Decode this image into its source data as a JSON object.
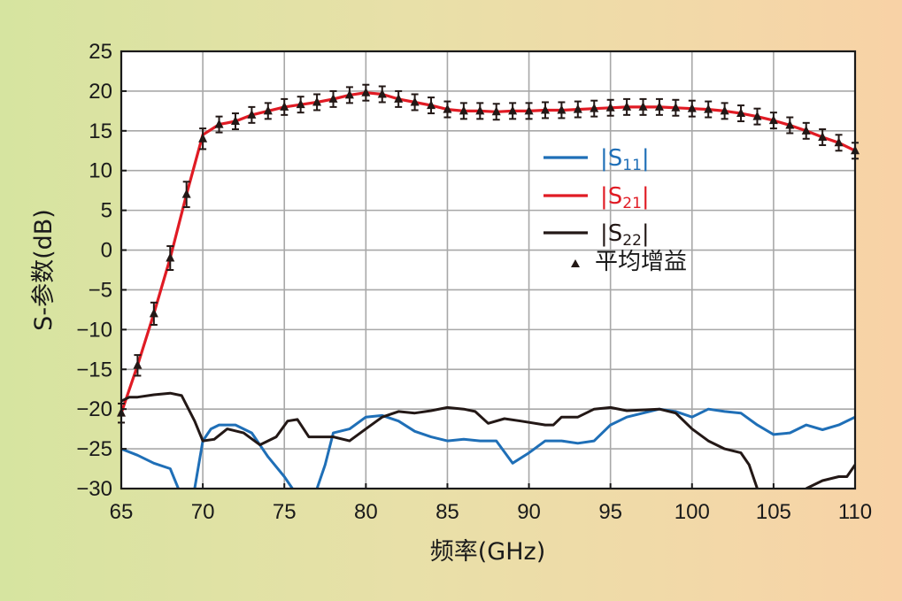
{
  "chart_data": {
    "type": "line",
    "title": "",
    "xlabel": "频率(GHz)",
    "ylabel": "S-参数(dB)",
    "xlim": [
      65,
      110
    ],
    "ylim": [
      -30,
      25
    ],
    "grid": true,
    "legend_position": "right-center",
    "x_ticks": [
      "65",
      "70",
      "75",
      "80",
      "85",
      "90",
      "95",
      "100",
      "105",
      "110"
    ],
    "y_ticks": [
      "25",
      "20",
      "15",
      "10",
      "5",
      "0",
      "−5",
      "−10",
      "−15",
      "−20",
      "−25",
      "−30"
    ],
    "series": [
      {
        "name": "|S11|",
        "label_main": "|S",
        "label_sub": "11",
        "label_end": "|",
        "color": "#1f6fb7",
        "x": [
          65,
          66,
          67,
          68,
          68.5,
          69,
          69.5,
          70,
          70.5,
          71,
          72,
          73,
          74,
          75,
          75.5,
          76.5,
          77,
          77.5,
          78,
          79,
          80,
          81,
          82,
          83,
          84,
          85,
          86,
          87,
          88,
          89,
          90,
          91,
          92,
          93,
          94,
          95,
          96,
          97,
          98,
          99,
          100,
          101,
          102,
          103,
          104,
          105,
          106,
          107,
          108,
          109,
          110
        ],
        "y": [
          -25,
          -25.8,
          -26.8,
          -27.5,
          -30,
          null,
          -30,
          -24,
          -22.5,
          -22,
          -22,
          -23,
          -26,
          -28.5,
          -30,
          null,
          -30,
          -27,
          -23,
          -22.5,
          -21,
          -20.8,
          -21.5,
          -22.8,
          -23.5,
          -24,
          -23.8,
          -24,
          -24,
          -26.8,
          -25.5,
          -24,
          -24,
          -24.3,
          -24,
          -22,
          -21,
          -20.5,
          -20,
          -20.3,
          -21,
          -20,
          -20.3,
          -20.5,
          -22,
          -23.2,
          -23,
          -22,
          -22.6,
          -22,
          -21
        ]
      },
      {
        "name": "|S21|",
        "label_main": "|S",
        "label_sub": "21",
        "label_end": "|",
        "color": "#e01b24",
        "x": [
          65,
          66,
          67,
          68,
          69,
          70,
          71,
          72,
          73,
          74,
          75,
          76,
          77,
          78,
          79,
          80,
          81,
          82,
          83,
          84,
          85,
          86,
          87,
          88,
          89,
          90,
          91,
          92,
          93,
          94,
          95,
          96,
          97,
          98,
          99,
          100,
          101,
          102,
          103,
          104,
          105,
          106,
          107,
          108,
          109,
          110
        ],
        "y": [
          -20.5,
          -14.5,
          -8,
          -1,
          7,
          14.5,
          15.8,
          16.2,
          17,
          17.5,
          18,
          18.3,
          18.6,
          19,
          19.5,
          19.8,
          19.6,
          19,
          18.6,
          18.2,
          17.7,
          17.5,
          17.5,
          17.4,
          17.5,
          17.5,
          17.6,
          17.6,
          17.7,
          17.8,
          17.9,
          18,
          18,
          18,
          17.9,
          17.8,
          17.7,
          17.5,
          17.2,
          16.8,
          16.3,
          15.7,
          15,
          14.2,
          13.5,
          12.5
        ]
      },
      {
        "name": "|S22|",
        "label_main": "|S",
        "label_sub": "22",
        "label_end": "|",
        "color": "#231816",
        "x": [
          65,
          65.5,
          66,
          67,
          68,
          68.7,
          69.5,
          70,
          70.7,
          71.5,
          72.5,
          73.5,
          74.5,
          75.2,
          75.8,
          76.5,
          78,
          79,
          80,
          81,
          82,
          83,
          84,
          85,
          86,
          86.7,
          87.5,
          88.5,
          89.5,
          91,
          91.5,
          92,
          93,
          94,
          95,
          96,
          97,
          98,
          99,
          100,
          101,
          102,
          103,
          103.5,
          104,
          104.5,
          105,
          106.5,
          107,
          108,
          109,
          109.5,
          110
        ],
        "y": [
          -19,
          -18.5,
          -18.5,
          -18.2,
          -18,
          -18.3,
          -21.5,
          -24,
          -23.8,
          -22.5,
          -23,
          -24.5,
          -23.5,
          -21.5,
          -21.3,
          -23.5,
          -23.5,
          -24,
          -22.5,
          -21,
          -20.3,
          -20.5,
          -20.2,
          -19.8,
          -20,
          -20.3,
          -21.8,
          -21.2,
          -21.5,
          -22,
          -22,
          -21,
          -21,
          -20,
          -19.8,
          -20.2,
          -20.1,
          -20,
          -20.5,
          -22.5,
          -24,
          -25,
          -25.5,
          -27,
          -30,
          null,
          null,
          null,
          -30,
          -29,
          -28.5,
          -28.5,
          -27
        ]
      },
      {
        "name": "平均增益",
        "label_main": "平均增益",
        "label_sub": "",
        "label_end": "",
        "type": "scatter",
        "marker": "triangle",
        "error_bars": true,
        "color": "#231816",
        "x": [
          65,
          66,
          67,
          68,
          69,
          70,
          71,
          72,
          73,
          74,
          75,
          76,
          77,
          78,
          79,
          80,
          81,
          82,
          83,
          84,
          85,
          86,
          87,
          88,
          89,
          90,
          91,
          92,
          93,
          94,
          95,
          96,
          97,
          98,
          99,
          100,
          101,
          102,
          103,
          104,
          105,
          106,
          107,
          108,
          109,
          110
        ],
        "y": [
          -20.5,
          -14.5,
          -8,
          -1,
          7,
          14,
          15.8,
          16.2,
          17,
          17.5,
          18,
          18.3,
          18.6,
          19,
          19.5,
          19.8,
          19.6,
          19,
          18.6,
          18.2,
          17.7,
          17.5,
          17.5,
          17.4,
          17.5,
          17.5,
          17.6,
          17.6,
          17.7,
          17.8,
          17.9,
          18,
          18,
          18,
          17.9,
          17.8,
          17.7,
          17.5,
          17.2,
          16.8,
          16.3,
          15.7,
          15,
          14.2,
          13.5,
          12.5
        ],
        "error": [
          1.2,
          1.3,
          1.4,
          1.5,
          1.6,
          1.3,
          1.0,
          1.0,
          1.0,
          1.0,
          1.0,
          1.0,
          1.0,
          1.0,
          1.0,
          1.0,
          1.0,
          1.0,
          1.0,
          1.0,
          1.0,
          1.0,
          1.0,
          1.0,
          1.0,
          1.0,
          1.0,
          1.0,
          1.0,
          1.0,
          1.0,
          1.0,
          1.0,
          1.0,
          1.0,
          1.0,
          1.0,
          1.0,
          1.0,
          1.0,
          1.0,
          1.0,
          1.0,
          1.0,
          1.0,
          1.0
        ]
      }
    ]
  }
}
